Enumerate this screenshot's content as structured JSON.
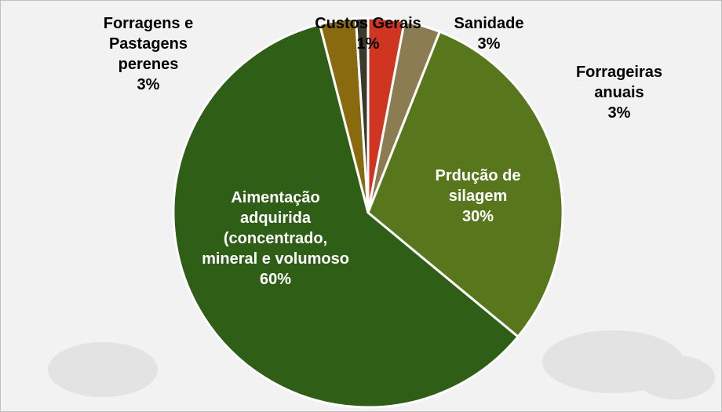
{
  "chart_data": {
    "type": "pie",
    "categories": [
      "Sanidade",
      "Forrageiras anuais",
      "Prdução de silagem",
      "Aimentação adquirida (concentrado, mineral e volumoso",
      "Forragens e Pastagens perenes",
      "Custos Gerais"
    ],
    "values": [
      3,
      3,
      30,
      60,
      3,
      1
    ],
    "value_labels": [
      "3%",
      "3%",
      "30%",
      "60%",
      "3%",
      "1%"
    ],
    "colors": [
      "#cf3520",
      "#8c7c52",
      "#58771c",
      "#2f5e17",
      "#8a6a0e",
      "#3a3a2c"
    ]
  }
}
